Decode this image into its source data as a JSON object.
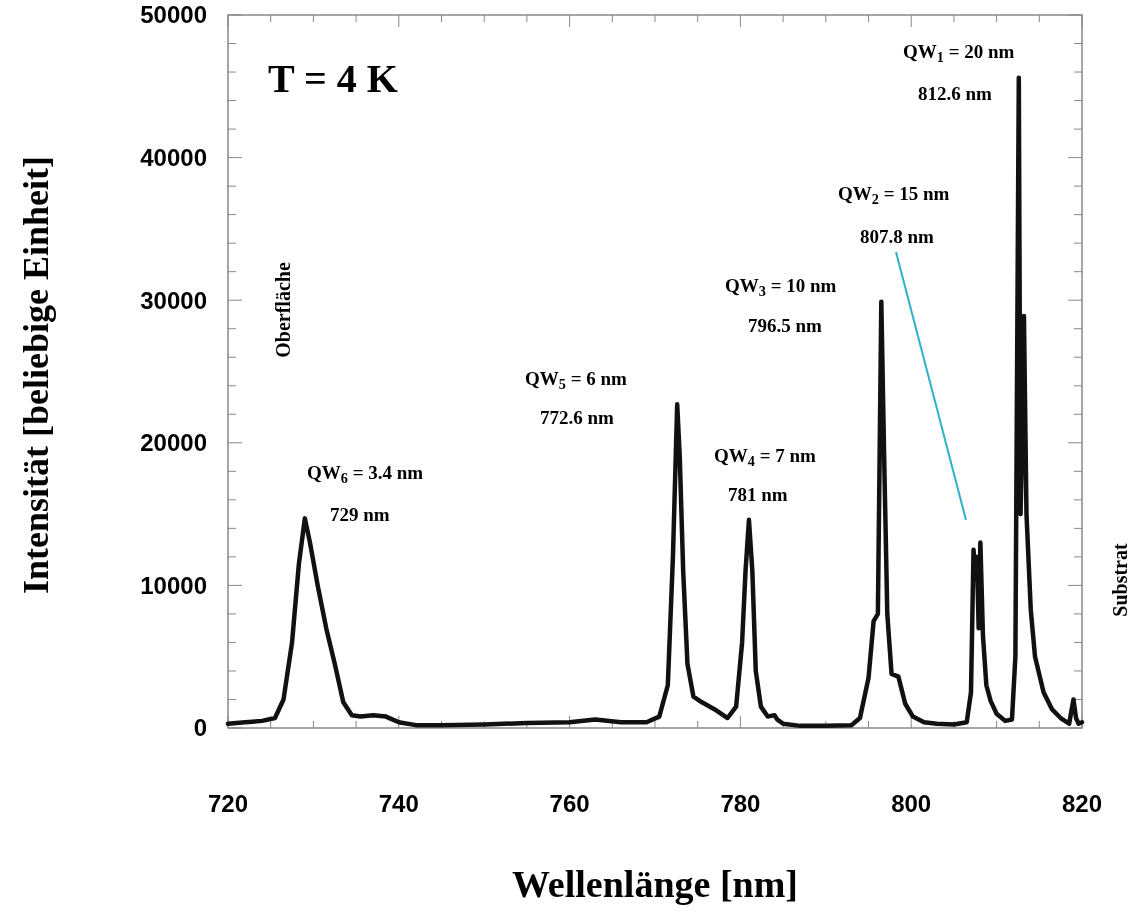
{
  "chart_data": {
    "type": "line",
    "xlabel": "Wellenlänge [nm]",
    "ylabel": "Intensität [beliebige Einheit]",
    "xlim": [
      720,
      820
    ],
    "ylim": [
      0,
      50000
    ],
    "xticks": [
      720,
      {
        "value": 725,
        "label": null
      },
      740,
      {
        "value": 730,
        "label": null
      },
      {
        "value": 735,
        "label": null
      },
      {
        "value": 745,
        "label": null
      },
      {
        "value": 750,
        "label": null
      },
      {
        "value": 755,
        "label": null
      },
      760,
      {
        "value": 765,
        "label": null
      },
      {
        "value": 770,
        "label": null
      },
      {
        "value": 775,
        "label": null
      },
      780,
      {
        "value": 785,
        "label": null
      },
      {
        "value": 790,
        "label": null
      },
      {
        "value": 795,
        "label": null
      },
      800,
      {
        "value": 805,
        "label": null
      },
      {
        "value": 810,
        "label": null
      },
      {
        "value": 815,
        "label": null
      },
      820
    ],
    "yticks": [
      0,
      {
        "value": 2000,
        "label": null
      },
      {
        "value": 4000,
        "label": null
      },
      {
        "value": 6000,
        "label": null
      },
      {
        "value": 8000,
        "label": null
      },
      10000,
      {
        "value": 12000,
        "label": null
      },
      {
        "value": 14000,
        "label": null
      },
      {
        "value": 16000,
        "label": null
      },
      {
        "value": 18000,
        "label": null
      },
      20000,
      {
        "value": 22000,
        "label": null
      },
      {
        "value": 24000,
        "label": null
      },
      {
        "value": 26000,
        "label": null
      },
      {
        "value": 28000,
        "label": null
      },
      30000,
      {
        "value": 32000,
        "label": null
      },
      {
        "value": 34000,
        "label": null
      },
      {
        "value": 36000,
        "label": null
      },
      {
        "value": 38000,
        "label": null
      },
      40000,
      {
        "value": 42000,
        "label": null
      },
      {
        "value": 44000,
        "label": null
      },
      {
        "value": 46000,
        "label": null
      },
      {
        "value": 48000,
        "label": null
      },
      50000
    ],
    "grid": false,
    "marker": "none",
    "line_style": "solid",
    "series": [
      {
        "color": "#111111",
        "x": [
          720,
          722,
          724,
          725.5,
          726.5,
          727.5,
          728.3,
          729,
          729.6,
          730.5,
          731.5,
          732.5,
          733.5,
          734.5,
          735.5,
          737,
          738.5,
          740,
          742,
          745,
          750,
          755,
          760,
          763,
          766,
          769,
          770.5,
          771.5,
          772.1,
          772.6,
          772.9,
          773.3,
          773.8,
          774.5,
          775.5,
          777,
          778.5,
          779.5,
          780.2,
          780.6,
          781,
          781.4,
          781.8,
          782.4,
          783.2,
          784,
          784.3,
          785,
          787,
          790,
          793,
          794,
          795,
          795.6,
          796.1,
          796.5,
          796.8,
          797.2,
          797.7,
          798.5,
          799.3,
          800.2,
          801.5,
          803,
          805,
          806.5,
          807,
          807.3,
          807.5,
          807.7,
          807.9,
          808.1,
          808.4,
          808.8,
          809.3,
          810,
          811,
          811.8,
          812.2,
          812.6,
          812.8,
          813,
          813.2,
          813.5,
          814,
          814.5,
          815.5,
          816.5,
          817.5,
          818.5,
          819,
          819.3,
          819.6,
          820
        ],
        "values": [
          300,
          400,
          500,
          700,
          2000,
          6000,
          11500,
          14700,
          13000,
          10000,
          7000,
          4500,
          1800,
          900,
          800,
          900,
          800,
          400,
          200,
          200,
          250,
          350,
          400,
          600,
          400,
          400,
          800,
          3000,
          12000,
          22700,
          19000,
          11000,
          4500,
          2200,
          1800,
          1300,
          700,
          1500,
          6000,
          11000,
          14600,
          11000,
          4000,
          1500,
          800,
          900,
          600,
          300,
          150,
          150,
          200,
          700,
          3500,
          7500,
          8000,
          29900,
          20000,
          8000,
          3800,
          3600,
          1700,
          800,
          400,
          300,
          250,
          400,
          2500,
          12500,
          10500,
          12000,
          7000,
          13000,
          6500,
          3000,
          1900,
          1000,
          500,
          600,
          5000,
          45600,
          15000,
          20000,
          28900,
          15000,
          8300,
          5000,
          2500,
          1300,
          700,
          300,
          2000,
          700,
          300,
          400
        ]
      }
    ],
    "annotations": [
      "T = 4 K",
      "QW$_{1}$ = 20 nm",
      "812.6 nm",
      "QW$_{2}$ = 15 nm",
      "807.8 nm",
      "QW$_{3}$ = 10 nm",
      "796.5 nm",
      "QW$_{5}$ = 6 nm",
      "772.6 nm",
      "QW$_{4}$ = 7 nm",
      "781 nm",
      "QW$_{6}$ = 3.4 nm",
      "729 nm",
      "Oberfläche",
      "Substrat"
    ]
  }
}
